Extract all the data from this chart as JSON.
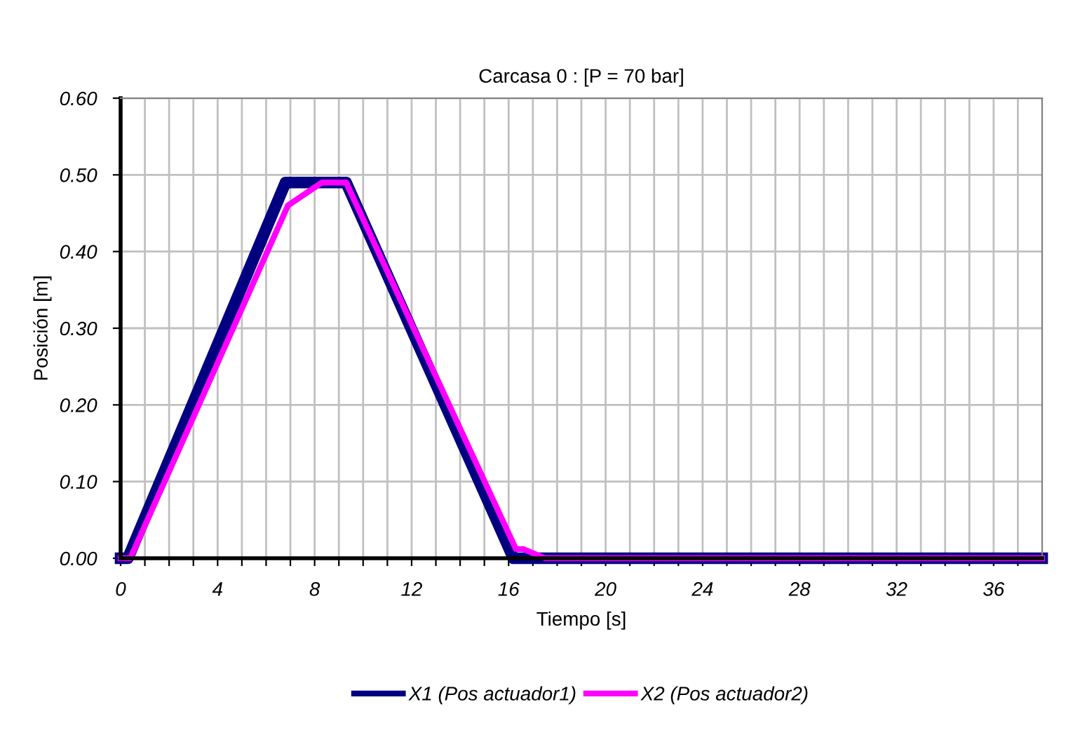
{
  "chart_data": {
    "type": "line",
    "title": "Carcasa 0 : [P = 70 bar]",
    "xlabel": "Tiempo [s]",
    "ylabel": "Posición [m]",
    "xlim": [
      0,
      38
    ],
    "ylim": [
      0,
      0.6
    ],
    "xticks": [
      0,
      {
        "value": 1,
        "label": null
      },
      {
        "value": 2,
        "label": null
      },
      {
        "value": 3,
        "label": null
      },
      4,
      {
        "value": 5,
        "label": null
      },
      {
        "value": 6,
        "label": null
      },
      {
        "value": 7,
        "label": null
      },
      8,
      {
        "value": 9,
        "label": null
      },
      {
        "value": 10,
        "label": null
      },
      {
        "value": 11,
        "label": null
      },
      12,
      {
        "value": 13,
        "label": null
      },
      {
        "value": 14,
        "label": null
      },
      {
        "value": 15,
        "label": null
      },
      16,
      {
        "value": 17,
        "label": null
      },
      {
        "value": 18,
        "label": null
      },
      {
        "value": 19,
        "label": null
      },
      20,
      {
        "value": 21,
        "label": null
      },
      {
        "value": 22,
        "label": null
      },
      {
        "value": 23,
        "label": null
      },
      24,
      {
        "value": 25,
        "label": null
      },
      {
        "value": 26,
        "label": null
      },
      {
        "value": 27,
        "label": null
      },
      28,
      {
        "value": 29,
        "label": null
      },
      {
        "value": 30,
        "label": null
      },
      {
        "value": 31,
        "label": null
      },
      32,
      {
        "value": 33,
        "label": null
      },
      {
        "value": 34,
        "label": null
      },
      {
        "value": 35,
        "label": null
      },
      36,
      {
        "value": 37,
        "label": null
      }
    ],
    "yticks": [
      {
        "value": 0,
        "label": "0.00"
      },
      {
        "value": 0.1,
        "label": "0.10"
      },
      {
        "value": 0.2,
        "label": "0.20"
      },
      {
        "value": 0.3,
        "label": "0.30"
      },
      {
        "value": 0.4,
        "label": "0.40"
      },
      {
        "value": 0.5,
        "label": "0.50"
      },
      {
        "value": 0.6,
        "label": "0.60"
      }
    ],
    "grid": true,
    "legend": "bottom",
    "marker": "none",
    "line_style": "solid",
    "series": [
      {
        "name": "X1 (Pos actuador1)",
        "color": "#000080",
        "x": [
          0,
          0.3,
          6.8,
          9.3,
          16.2,
          38
        ],
        "values": [
          0,
          0,
          0.49,
          0.49,
          0,
          0
        ]
      },
      {
        "name": "X2 (Pos actuador2)",
        "color": "#ff00ff",
        "x": [
          0,
          0.4,
          6.9,
          8.3,
          9.3,
          16.3,
          16.6,
          17.5,
          38
        ],
        "values": [
          0,
          0,
          0.46,
          0.49,
          0.49,
          0.012,
          0.012,
          0,
          0
        ]
      }
    ]
  }
}
